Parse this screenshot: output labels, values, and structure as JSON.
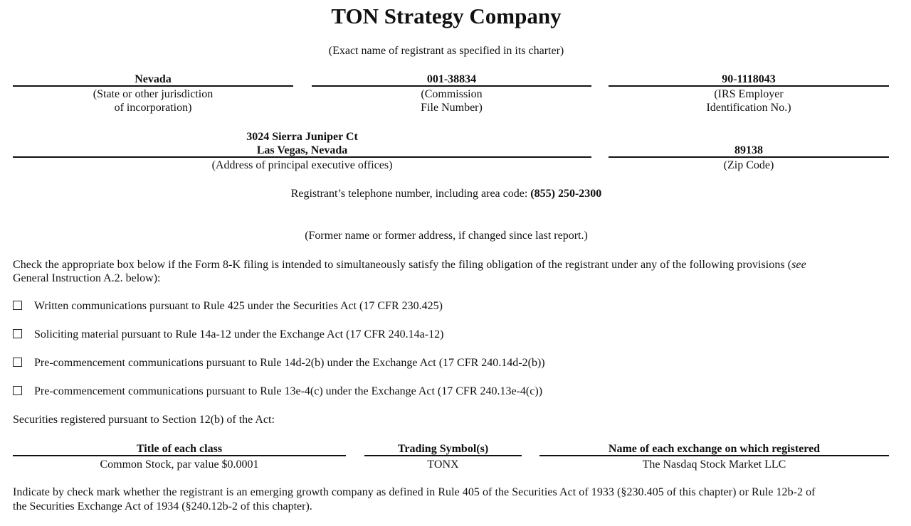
{
  "company_name": "TON Strategy Company",
  "company_caption": "(Exact name of registrant as specified in its charter)",
  "state": {
    "value": "Nevada",
    "caption_1": "(State or other jurisdiction",
    "caption_2": "of incorporation)"
  },
  "commission": {
    "value": "001-38834",
    "caption_1": "(Commission",
    "caption_2": "File Number)"
  },
  "irs": {
    "value": "90-1118043",
    "caption_1": "(IRS Employer",
    "caption_2": "Identification No.)"
  },
  "address": {
    "line_1": "3024 Sierra Juniper Ct",
    "line_2": "Las Vegas, Nevada",
    "caption": "(Address of principal executive offices)"
  },
  "zip": {
    "value": "89138",
    "caption": "(Zip Code)"
  },
  "phone": {
    "label": "Registrant’s telephone number, including area code: ",
    "value": "(855) 250-2300"
  },
  "former_name_caption": "(Former name or former address, if changed since last report.)",
  "check_intro": {
    "line_1": "Check the appropriate box below if the Form 8-K filing is intended to simultaneously satisfy the filing obligation of the registrant under any of the following provisions (",
    "line_1_italic": "see",
    "line_2": "General Instruction A.2. below):"
  },
  "checkboxes": [
    {
      "label": "Written communications pursuant to Rule 425 under the Securities Act (17 CFR 230.425)",
      "checked": false
    },
    {
      "label": "Soliciting material pursuant to Rule 14a-12 under the Exchange Act (17 CFR 240.14a-12)",
      "checked": false
    },
    {
      "label": "Pre-commencement communications pursuant to Rule 14d-2(b) under the Exchange Act (17 CFR 240.14d-2(b))",
      "checked": false
    },
    {
      "label": "Pre-commencement communications pursuant to Rule 13e-4(c) under the Exchange Act (17 CFR 240.13e-4(c))",
      "checked": false
    }
  ],
  "securities_intro": "Securities registered pursuant to Section 12(b) of the Act:",
  "securities_table": {
    "headers": [
      "Title of each class",
      "Trading Symbol(s)",
      "Name of each exchange on which registered"
    ],
    "rows": [
      [
        "Common Stock, par value $0.0001",
        "TONX",
        "The Nasdaq Stock Market LLC"
      ]
    ]
  },
  "emerging_growth": {
    "line_1": "Indicate by check mark whether the registrant is an emerging growth company as defined in Rule 405 of the Securities Act of 1933 (§230.405 of this chapter) or Rule 12b-2 of",
    "line_2": "the Securities Exchange Act of 1934 (§240.12b-2 of this chapter)."
  }
}
